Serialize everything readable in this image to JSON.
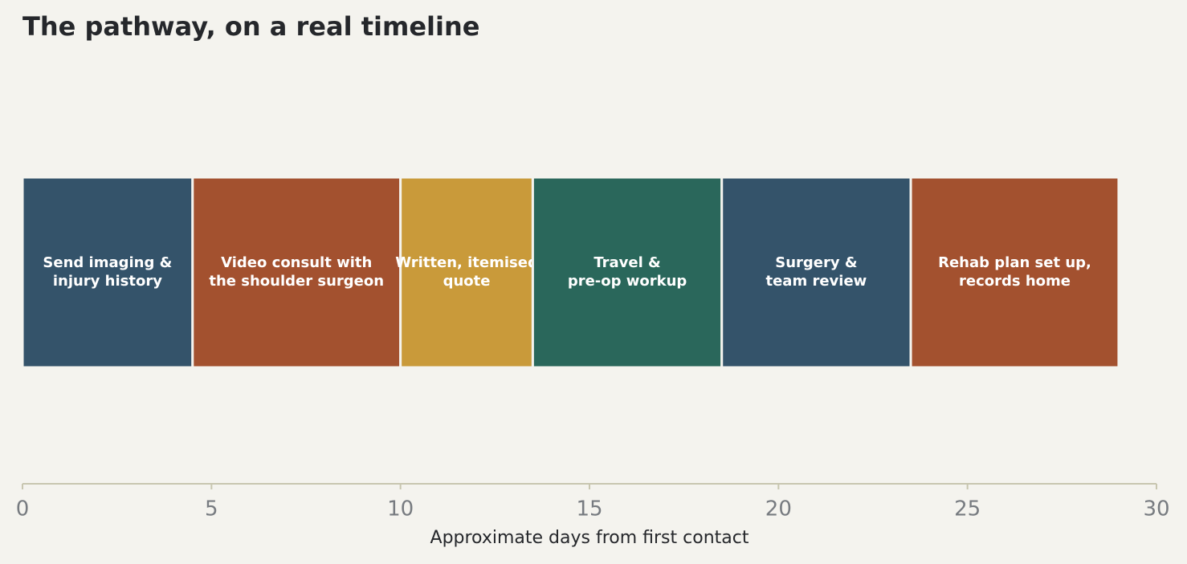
{
  "chart_data": {
    "type": "bar",
    "orientation": "horizontal",
    "stacked": true,
    "title": "The pathway, on a real timeline",
    "xlabel": "Approximate days from first contact",
    "categories": [
      "Send imaging &\ninjury history",
      "Video consult with\nthe shoulder surgeon",
      "Written, itemised\nquote",
      "Travel &\npre-op workup",
      "Surgery &\nteam review",
      "Rehab plan set up,\nrecords home"
    ],
    "values": [
      4.5,
      5.5,
      3.5,
      5,
      5,
      5.5
    ],
    "colors": [
      "#34536a",
      "#a3512f",
      "#c99a3a",
      "#2a675b",
      "#34536a",
      "#a3512f"
    ],
    "xlim": [
      0,
      30
    ],
    "xticks": [
      0,
      5,
      10,
      15,
      20,
      25,
      30
    ]
  }
}
